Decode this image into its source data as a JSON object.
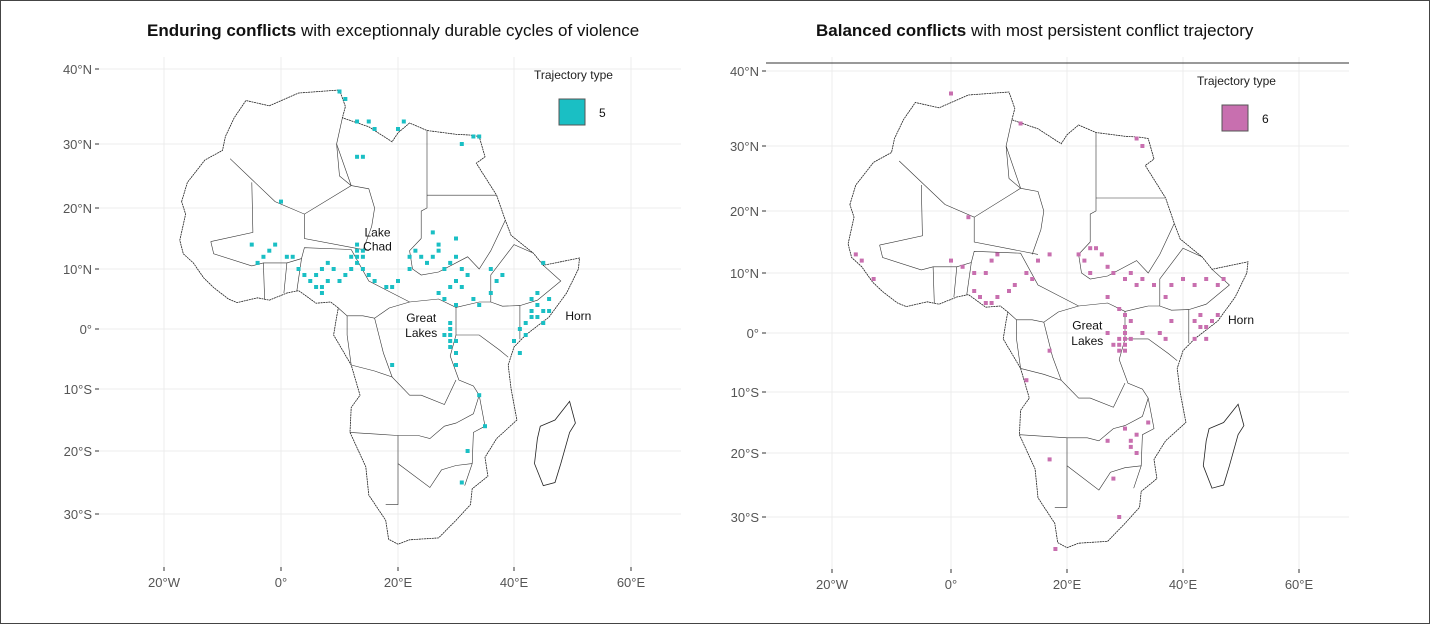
{
  "panels": [
    {
      "title_bold": "Enduring conflicts",
      "title_rest": " with exceptionnaly durable cycles of violence",
      "legend": {
        "title": "Trajectory type",
        "value": "5",
        "color": "#1ABFC4"
      },
      "region_labels": [
        {
          "text": "Lake",
          "lon": 16.5,
          "lat": 15.3
        },
        {
          "text": "Chad",
          "lon": 16.5,
          "lat": 13.0
        },
        {
          "text": "Great",
          "lon": 24,
          "lat": 1.2
        },
        {
          "text": "Lakes",
          "lon": 24,
          "lat": -1.3
        },
        {
          "text": "Horn",
          "lon": 51,
          "lat": 1.5
        }
      ],
      "cells": [
        [
          10,
          37
        ],
        [
          11,
          36
        ],
        [
          13,
          33
        ],
        [
          15,
          33
        ],
        [
          16,
          32
        ],
        [
          20,
          32
        ],
        [
          21,
          33
        ],
        [
          33,
          31
        ],
        [
          34,
          31
        ],
        [
          31,
          30
        ],
        [
          13,
          28
        ],
        [
          14,
          28
        ],
        [
          0,
          21
        ],
        [
          -5,
          14
        ],
        [
          -2,
          13
        ],
        [
          -3,
          12
        ],
        [
          -1,
          14
        ],
        [
          -4,
          11
        ],
        [
          1,
          12
        ],
        [
          2,
          12
        ],
        [
          3,
          10
        ],
        [
          4,
          9
        ],
        [
          5,
          8
        ],
        [
          6,
          9
        ],
        [
          6,
          7
        ],
        [
          7,
          7
        ],
        [
          7,
          10
        ],
        [
          8,
          11
        ],
        [
          9,
          10
        ],
        [
          8,
          8
        ],
        [
          7,
          6
        ],
        [
          10,
          8
        ],
        [
          11,
          9
        ],
        [
          12,
          10
        ],
        [
          12,
          12
        ],
        [
          13,
          12
        ],
        [
          13,
          13
        ],
        [
          13,
          14
        ],
        [
          14,
          13
        ],
        [
          14,
          12
        ],
        [
          13,
          11
        ],
        [
          14,
          10
        ],
        [
          15,
          9
        ],
        [
          16,
          8
        ],
        [
          18,
          7
        ],
        [
          19,
          7
        ],
        [
          20,
          8
        ],
        [
          22,
          10
        ],
        [
          22,
          12
        ],
        [
          23,
          13
        ],
        [
          24,
          12
        ],
        [
          25,
          11
        ],
        [
          26,
          12
        ],
        [
          27,
          13
        ],
        [
          28,
          10
        ],
        [
          29,
          11
        ],
        [
          30,
          12
        ],
        [
          31,
          10
        ],
        [
          32,
          9
        ],
        [
          30,
          8
        ],
        [
          31,
          7
        ],
        [
          29,
          7
        ],
        [
          27,
          6
        ],
        [
          28,
          5
        ],
        [
          30,
          4
        ],
        [
          33,
          5
        ],
        [
          34,
          4
        ],
        [
          36,
          6
        ],
        [
          37,
          8
        ],
        [
          38,
          9
        ],
        [
          36,
          10
        ],
        [
          30,
          15
        ],
        [
          26,
          16
        ],
        [
          27,
          14
        ],
        [
          45,
          11
        ],
        [
          43,
          5
        ],
        [
          44,
          4
        ],
        [
          45,
          3
        ],
        [
          46,
          3
        ],
        [
          43,
          2
        ],
        [
          44,
          2
        ],
        [
          42,
          1
        ],
        [
          41,
          0
        ],
        [
          42,
          -1
        ],
        [
          45,
          1
        ],
        [
          43,
          3
        ],
        [
          46,
          5
        ],
        [
          44,
          6
        ],
        [
          29,
          1
        ],
        [
          29,
          0
        ],
        [
          29,
          -1
        ],
        [
          29,
          -2
        ],
        [
          30,
          -2
        ],
        [
          29,
          -3
        ],
        [
          30,
          -4
        ],
        [
          28,
          -1
        ],
        [
          30,
          -6
        ],
        [
          34,
          -11
        ],
        [
          32,
          -20
        ],
        [
          31,
          -25
        ],
        [
          35,
          -16
        ],
        [
          19,
          -6
        ],
        [
          40,
          -2
        ],
        [
          41,
          -4
        ]
      ]
    },
    {
      "title_bold": "Balanced conflicts",
      "title_rest": " with most persistent conflict trajectory",
      "legend": {
        "title": "Trajectory type",
        "value": "6",
        "color": "#C86FAF"
      },
      "region_labels": [
        {
          "text": "Great",
          "lon": 23.5,
          "lat": 0.6
        },
        {
          "text": "Lakes",
          "lon": 23.5,
          "lat": -2
        },
        {
          "text": "Horn",
          "lon": 50,
          "lat": 1.5
        }
      ],
      "cells": [
        [
          0,
          37
        ],
        [
          12,
          33
        ],
        [
          32,
          31
        ],
        [
          33,
          30
        ],
        [
          3,
          19
        ],
        [
          -16,
          13
        ],
        [
          -15,
          12
        ],
        [
          -13,
          9
        ],
        [
          0,
          12
        ],
        [
          2,
          11
        ],
        [
          4,
          10
        ],
        [
          6,
          10
        ],
        [
          7,
          12
        ],
        [
          8,
          13
        ],
        [
          4,
          7
        ],
        [
          5,
          6
        ],
        [
          6,
          5
        ],
        [
          7,
          5
        ],
        [
          8,
          6
        ],
        [
          10,
          7
        ],
        [
          11,
          8
        ],
        [
          13,
          10
        ],
        [
          14,
          9
        ],
        [
          15,
          12
        ],
        [
          17,
          13
        ],
        [
          22,
          13
        ],
        [
          23,
          12
        ],
        [
          24,
          14
        ],
        [
          25,
          14
        ],
        [
          26,
          13
        ],
        [
          24,
          10
        ],
        [
          27,
          11
        ],
        [
          28,
          10
        ],
        [
          30,
          9
        ],
        [
          31,
          10
        ],
        [
          32,
          8
        ],
        [
          33,
          9
        ],
        [
          35,
          8
        ],
        [
          37,
          6
        ],
        [
          38,
          8
        ],
        [
          40,
          9
        ],
        [
          42,
          8
        ],
        [
          44,
          9
        ],
        [
          46,
          8
        ],
        [
          47,
          9
        ],
        [
          27,
          6
        ],
        [
          29,
          4
        ],
        [
          30,
          3
        ],
        [
          31,
          2
        ],
        [
          30,
          1
        ],
        [
          30,
          0
        ],
        [
          29,
          -1
        ],
        [
          30,
          -1
        ],
        [
          29,
          -2
        ],
        [
          30,
          -2
        ],
        [
          29,
          -3
        ],
        [
          30,
          -3
        ],
        [
          31,
          -1
        ],
        [
          28,
          -2
        ],
        [
          27,
          0
        ],
        [
          33,
          0
        ],
        [
          36,
          0
        ],
        [
          37,
          -1
        ],
        [
          38,
          2
        ],
        [
          42,
          2
        ],
        [
          43,
          1
        ],
        [
          44,
          1
        ],
        [
          45,
          2
        ],
        [
          46,
          3
        ],
        [
          43,
          3
        ],
        [
          44,
          -1
        ],
        [
          42,
          -1
        ],
        [
          34,
          -15
        ],
        [
          32,
          -17
        ],
        [
          31,
          -18
        ],
        [
          31,
          -19
        ],
        [
          32,
          -20
        ],
        [
          30,
          -16
        ],
        [
          27,
          -18
        ],
        [
          28,
          -24
        ],
        [
          29,
          -30
        ],
        [
          17,
          -21
        ],
        [
          18,
          -35
        ],
        [
          13,
          -8
        ],
        [
          17,
          -3
        ]
      ]
    }
  ]
}
